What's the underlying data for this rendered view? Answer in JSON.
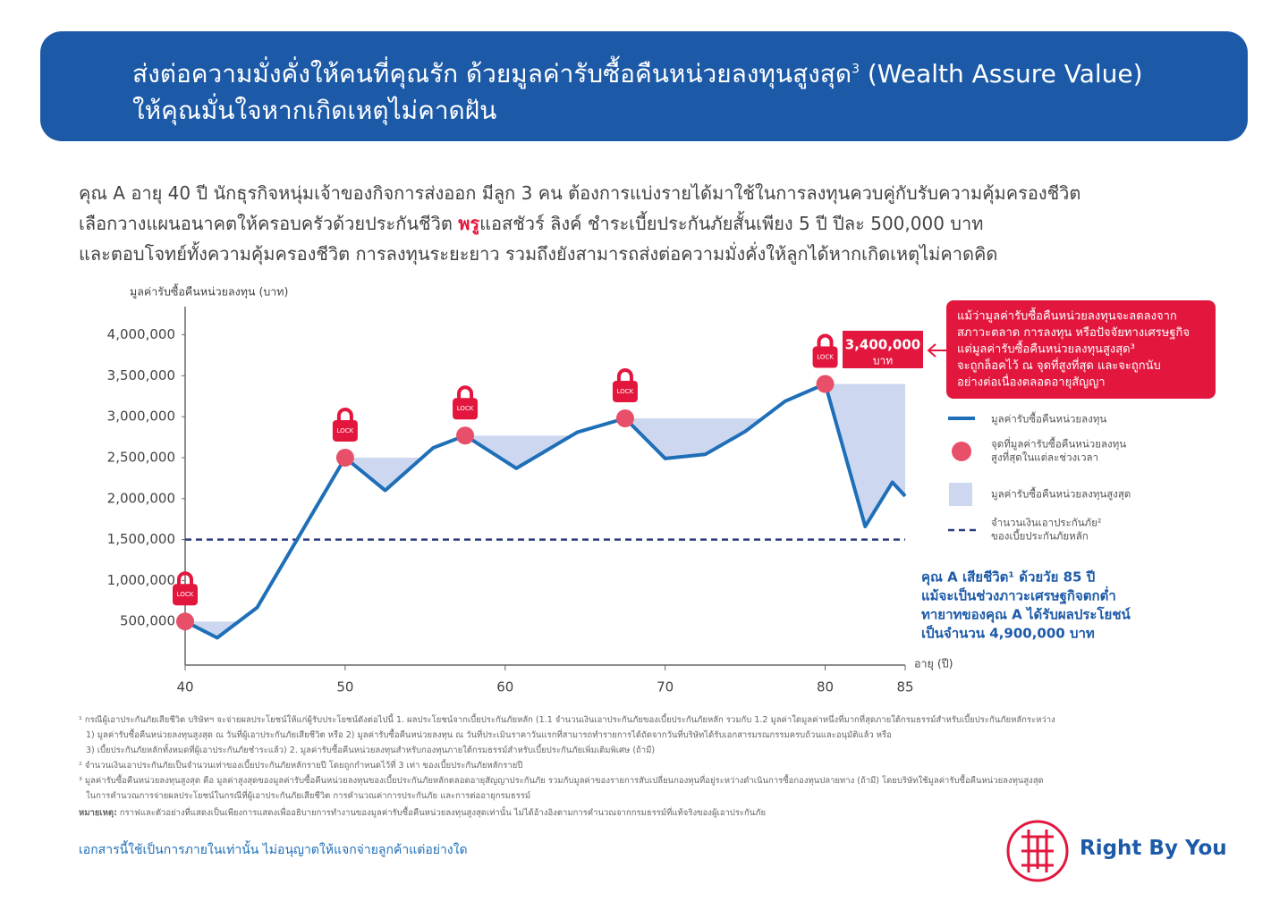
{
  "header": {
    "title_line1": "ส่งต่อความมั่งคั่งให้คนที่คุณรัก ด้วยมูลค่ารับซื้อคืนหน่วยลงทุนสูงสุด",
    "title_sup": "3",
    "title_line1_end": " (Wealth Assure Value)",
    "title_line2": "ให้คุณมั่นใจหากเกิดเหตุไม่คาดฝัน"
  },
  "intro": {
    "line1": "คุณ A อายุ 40 ปี นักธุรกิจหนุ่มเจ้าของกิจการส่งออก มีลูก 3 คน ต้องการแบ่งรายได้มาใช้ในการลงทุนควบคู่กับรับความคุ้มครองชีวิต",
    "line2_before": "เลือกวางแผนอนาคตให้ครอบครัวด้วยประกันชีวิต ",
    "brand": "พรู",
    "line2_after": "แอสชัวร์ ลิงค์ ชำระเบี้ยประกันภัยสั้นเพียง 5 ปี ปีละ 500,000 บาท",
    "line3": "และตอบโจทย์ทั้งความคุ้มครองชีวิต การลงทุนระยะยาว รวมถึงยังสามารถส่งต่อความมั่งคั่งให้ลูกได้หากเกิดเหตุไม่คาดคิด"
  },
  "chart_data": {
    "type": "line",
    "y_axis_label": "มูลค่ารับซื้อคืนหน่วยลงทุน (บาท)",
    "x_axis_label": "อายุ (ปี)",
    "x": [
      40,
      42,
      44.5,
      50,
      52.5,
      55.5,
      57.5,
      60.7,
      64.5,
      67.5,
      70,
      72.5,
      75,
      77.5,
      80,
      82.5,
      84.2,
      85
    ],
    "series": [
      {
        "name": "มูลค่ารับซื้อคืนหน่วยลงทุน",
        "color": "#1f6fb8",
        "values": [
          500000,
          300000,
          670000,
          2500000,
          2100000,
          2620000,
          2770000,
          2370000,
          2810000,
          2980000,
          2490000,
          2540000,
          2820000,
          3190000,
          3400000,
          1660000,
          2200000,
          2030000
        ]
      }
    ],
    "locks": {
      "name_lines": [
        "จุดที่มูลค่ารับซื้อคืนหน่วยลงทุน",
        "สูงที่สุดในแต่ละช่วงเวลา"
      ],
      "color": "#e8506a",
      "label": "LOCK",
      "x": [
        40,
        50,
        57.5,
        67.5,
        80
      ],
      "values": [
        500000,
        2500000,
        2770000,
        2980000,
        3400000
      ]
    },
    "max_area": {
      "name": "มูลค่ารับซื้อคืนหน่วยลงทุนสูงสุด",
      "color": "#cdd8f0"
    },
    "sum_insured": {
      "name_lines": [
        "จำนวนเงินเอาประกันภัย²",
        "ของเบี้ยประกันภัยหลัก"
      ],
      "value": 1500000,
      "color": "#2b3a7c"
    },
    "xlim": [
      40,
      85
    ],
    "xticks": [
      40,
      50,
      60,
      70,
      80,
      85
    ],
    "ylim": [
      0,
      4350000
    ],
    "yticks": [
      {
        "value": 500000,
        "label": "500,000"
      },
      {
        "value": 1000000,
        "label": "1,000,000"
      },
      {
        "value": 1500000,
        "label": "1,500,000"
      },
      {
        "value": 2000000,
        "label": "2,000,000"
      },
      {
        "value": 2500000,
        "label": "2,500,000"
      },
      {
        "value": 3000000,
        "label": "3,000,000"
      },
      {
        "value": 3500000,
        "label": "3,500,000"
      },
      {
        "value": 4000000,
        "label": "4,000,000"
      }
    ],
    "peak_label": {
      "value_label": "3,400,000",
      "unit": "บาท"
    },
    "callout_lines": [
      "แม้ว่ามูลค่ารับซื้อคืนหน่วยลงทุนจะลดลงจาก",
      "สภาวะตลาด การลงทุน หรือปัจจัยทางเศรษฐกิจ",
      "แต่มูลค่ารับซื้อคืนหน่วยลงทุนสูงสุด³",
      "จะถูกล็อคไว้ ณ จุดที่สูงที่สุด และจะถูกนับ",
      "อย่างต่อเนื่องตลอดอายุสัญญา"
    ],
    "note_lines": [
      "คุณ A เสียชีวิต¹ ด้วยวัย 85 ปี",
      "แม้จะเป็นช่วงภาวะเศรษฐกิจตกต่ำ",
      "ทายาทของคุณ A ได้รับผลประโยชน์",
      "เป็นจำนวน 4,900,000 บาท"
    ]
  },
  "footnotes": {
    "lines": [
      "¹ กรณีผู้เอาประกันภัยเสียชีวิต บริษัทฯ จะจ่ายผลประโยชน์ให้แก่ผู้รับประโยชน์ดังต่อไปนี้ 1. ผลประโยชน์จากเบี้ยประกันภัยหลัก (1.1 จำนวนเงินเอาประกันภัยของเบี้ยประกันภัยหลัก รวมกับ 1.2 มูลค่าใดมูลค่าหนึ่งที่มากที่สุดภายใต้กรมธรรม์สำหรับเบี้ยประกันภัยหลักระหว่าง",
      "1) มูลค่ารับซื้อคืนหน่วยลงทุนสูงสุด ณ วันที่ผู้เอาประกันภัยเสียชีวิต หรือ 2) มูลค่ารับซื้อคืนหน่วยลงทุน ณ วันที่ประเมินราคาวันแรกที่สามารถทำรายการได้ถัดจากวันที่บริษัทได้รับเอกสารมรณกรรมครบถ้วนและอนุมัติแล้ว หรือ",
      "3) เบี้ยประกันภัยหลักทั้งหมดที่ผู้เอาประกันภัยชำระแล้ว) 2. มูลค่ารับซื้อคืนหน่วยลงทุนสำหรับกองทุนภายใต้กรมธรรม์สำหรับเบี้ยประกันภัยเพิ่มเติมพิเศษ (ถ้ามี)",
      "² จำนวนเงินเอาประกันภัยเป็นจำนวนเท่าของเบี้ยประกันภัยหลักรายปี โดยถูกกำหนดไว้ที่ 3 เท่า ของเบี้ยประกันภัยหลักรายปี",
      "³ มูลค่ารับซื้อคืนหน่วยลงทุนสูงสุด คือ มูลค่าสูงสุดของมูลค่ารับซื้อคืนหน่วยลงทุนของเบี้ยประกันภัยหลักตลอดอายุสัญญาประกันภัย รวมกับมูลค่าของรายการสับเปลี่ยนกองทุนที่อยู่ระหว่างดำเนินการซื้อกองทุนปลายทาง (ถ้ามี) โดยบริษัทใช้มูลค่ารับซื้อคืนหน่วยลงทุนสูงสุด",
      "ในการคำนวณการจ่ายผลประโยชน์ในกรณีที่ผู้เอาประกันภัยเสียชีวิต การคำนวณค่าการประกันภัย และการต่ออายุกรมธรรม์"
    ],
    "remark_label": "หมายเหตุ:",
    "remark": " กราฟและตัวอย่างที่แสดงเป็นเพียงการแสดงเพื่ออธิบายการทำงานของมูลค่ารับซื้อคืนหน่วยลงทุนสูงสุดเท่านั้น ไม่ได้อ้างอิงตามการคำนวณจากกรมธรรม์ที่แท้จริงของผู้เอาประกันภัย"
  },
  "footer": {
    "disclaimer": "เอกสารนี้ใช้เป็นการภายในเท่านั้น ไม่อนุญาตให้แจกจ่ายลูกค้าแต่อย่างใด",
    "brand": "Right By You"
  }
}
